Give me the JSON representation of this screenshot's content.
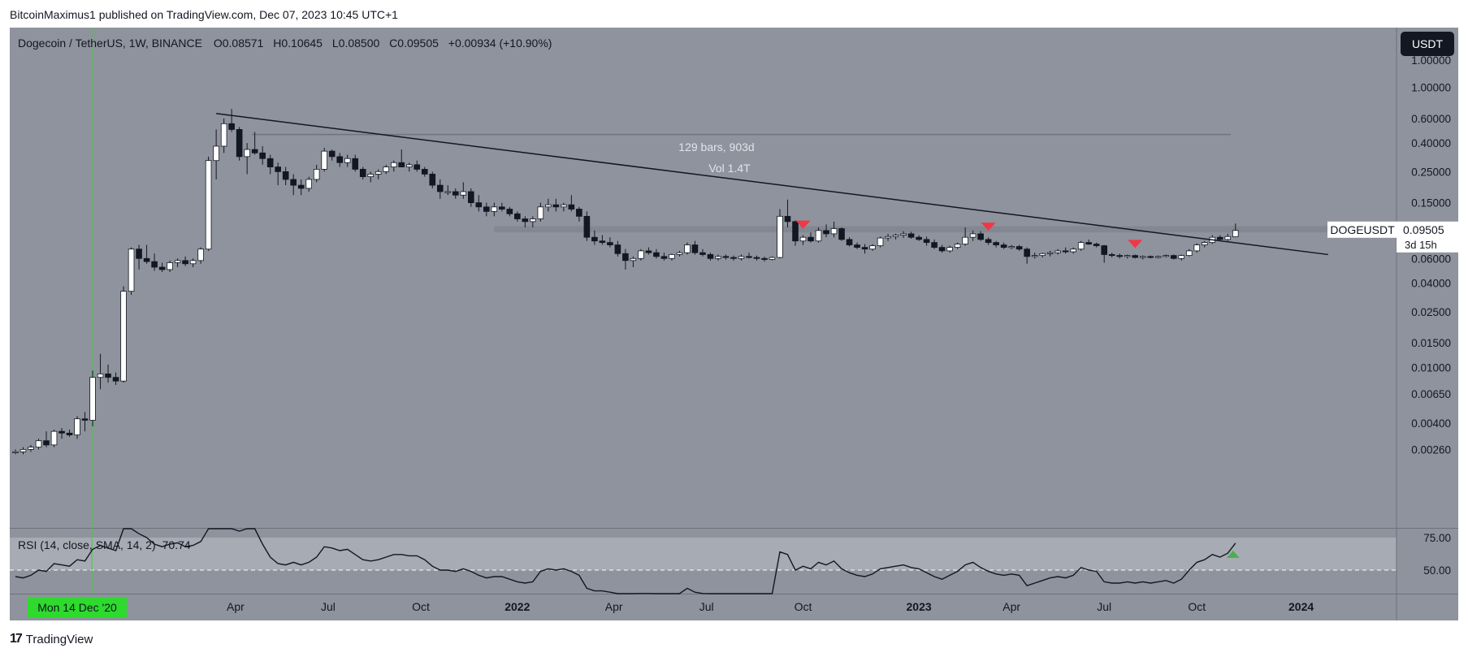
{
  "header": {
    "publisher": "BitcoinMaximus1 published on TradingView.com, Dec 07, 2023 10:45 UTC+1"
  },
  "footer": {
    "brand": "TradingView"
  },
  "legend": {
    "symbol": "Dogecoin / TetherUS, 1W, BINANCE",
    "o_label": "O",
    "o": "0.08571",
    "h_label": "H",
    "h": "0.10645",
    "l_label": "L",
    "l": "0.08500",
    "c_label": "C",
    "c": "0.09505",
    "change": "+0.00934 (+10.90%)"
  },
  "currency_button": "USDT",
  "measure": {
    "bars": "129 bars, 903d",
    "vol": "Vol 1.4T"
  },
  "price_tag": {
    "ticker": "DOGEUSDT",
    "price": "0.09505",
    "countdown": "3d 15h"
  },
  "rsi_legend": {
    "label": "RSI (14, close, SMA, 14, 2)",
    "value": "70.74"
  },
  "crosshair_date": "Mon 14 Dec '20",
  "colors": {
    "panel_bg": "#8f939d",
    "rsi_band": "#a7abb3",
    "up_fill": "#ffffff",
    "down_fill": "#131722",
    "marker_red": "#f23645",
    "marker_green": "#4caf50",
    "crosshair": "#2dda2d"
  },
  "chart_data": {
    "type": "candlestick",
    "timeframe": "1W",
    "price_scale": "log",
    "y_ticks": [
      "1.00000",
      "0.60000",
      "0.40000",
      "0.25000",
      "0.15000",
      "0.09505",
      "0.06000",
      "0.04000",
      "0.02500",
      "0.01500",
      "0.01000",
      "0.00650",
      "0.00400",
      "0.00260"
    ],
    "x_ticks": [
      "Apr",
      "Jul",
      "Oct",
      "2022",
      "Apr",
      "Jul",
      "Oct",
      "2023",
      "Apr",
      "Jul",
      "Oct",
      "2024"
    ],
    "rsi_ticks": [
      "75.00",
      "50.00"
    ],
    "candles": [
      [
        0.0025,
        0.0026,
        0.0024,
        0.0025
      ],
      [
        0.0025,
        0.0027,
        0.0024,
        0.0026
      ],
      [
        0.0026,
        0.0028,
        0.0025,
        0.0027
      ],
      [
        0.0027,
        0.0031,
        0.0026,
        0.003
      ],
      [
        0.003,
        0.0035,
        0.0027,
        0.0028
      ],
      [
        0.0028,
        0.0036,
        0.0027,
        0.0035
      ],
      [
        0.0035,
        0.0037,
        0.0031,
        0.0034
      ],
      [
        0.0034,
        0.0036,
        0.0032,
        0.0033
      ],
      [
        0.0033,
        0.0045,
        0.0031,
        0.0043
      ],
      [
        0.0043,
        0.0048,
        0.0035,
        0.0042
      ],
      [
        0.0042,
        0.0095,
        0.0038,
        0.0085
      ],
      [
        0.0085,
        0.0125,
        0.007,
        0.009
      ],
      [
        0.009,
        0.0105,
        0.0078,
        0.0085
      ],
      [
        0.0085,
        0.0092,
        0.0075,
        0.008
      ],
      [
        0.008,
        0.038,
        0.0078,
        0.035
      ],
      [
        0.035,
        0.072,
        0.033,
        0.07
      ],
      [
        0.07,
        0.075,
        0.05,
        0.06
      ],
      [
        0.06,
        0.075,
        0.055,
        0.057
      ],
      [
        0.057,
        0.065,
        0.049,
        0.052
      ],
      [
        0.052,
        0.056,
        0.048,
        0.05
      ],
      [
        0.05,
        0.058,
        0.048,
        0.056
      ],
      [
        0.056,
        0.06,
        0.052,
        0.058
      ],
      [
        0.058,
        0.062,
        0.053,
        0.055
      ],
      [
        0.055,
        0.06,
        0.052,
        0.058
      ],
      [
        0.058,
        0.072,
        0.055,
        0.07
      ],
      [
        0.07,
        0.32,
        0.068,
        0.3
      ],
      [
        0.3,
        0.5,
        0.22,
        0.38
      ],
      [
        0.38,
        0.6,
        0.34,
        0.55
      ],
      [
        0.55,
        0.7,
        0.48,
        0.5
      ],
      [
        0.5,
        0.52,
        0.3,
        0.32
      ],
      [
        0.32,
        0.4,
        0.24,
        0.36
      ],
      [
        0.36,
        0.48,
        0.33,
        0.34
      ],
      [
        0.34,
        0.38,
        0.28,
        0.31
      ],
      [
        0.31,
        0.33,
        0.24,
        0.27
      ],
      [
        0.27,
        0.29,
        0.2,
        0.25
      ],
      [
        0.25,
        0.27,
        0.2,
        0.22
      ],
      [
        0.22,
        0.24,
        0.17,
        0.2
      ],
      [
        0.2,
        0.22,
        0.17,
        0.19
      ],
      [
        0.19,
        0.23,
        0.18,
        0.22
      ],
      [
        0.22,
        0.28,
        0.21,
        0.26
      ],
      [
        0.26,
        0.37,
        0.25,
        0.35
      ],
      [
        0.35,
        0.36,
        0.3,
        0.32
      ],
      [
        0.32,
        0.34,
        0.27,
        0.29
      ],
      [
        0.29,
        0.33,
        0.27,
        0.31
      ],
      [
        0.31,
        0.33,
        0.25,
        0.26
      ],
      [
        0.26,
        0.27,
        0.22,
        0.23
      ],
      [
        0.23,
        0.25,
        0.21,
        0.24
      ],
      [
        0.24,
        0.26,
        0.22,
        0.25
      ],
      [
        0.25,
        0.28,
        0.24,
        0.27
      ],
      [
        0.27,
        0.3,
        0.25,
        0.29
      ],
      [
        0.29,
        0.36,
        0.27,
        0.27
      ],
      [
        0.27,
        0.29,
        0.25,
        0.28
      ],
      [
        0.28,
        0.3,
        0.25,
        0.26
      ],
      [
        0.26,
        0.27,
        0.23,
        0.24
      ],
      [
        0.24,
        0.25,
        0.19,
        0.2
      ],
      [
        0.2,
        0.22,
        0.16,
        0.18
      ],
      [
        0.18,
        0.2,
        0.17,
        0.18
      ],
      [
        0.18,
        0.19,
        0.16,
        0.17
      ],
      [
        0.17,
        0.21,
        0.16,
        0.18
      ],
      [
        0.18,
        0.19,
        0.14,
        0.15
      ],
      [
        0.15,
        0.17,
        0.13,
        0.14
      ],
      [
        0.14,
        0.15,
        0.12,
        0.13
      ],
      [
        0.13,
        0.15,
        0.12,
        0.14
      ],
      [
        0.14,
        0.15,
        0.13,
        0.135
      ],
      [
        0.135,
        0.14,
        0.12,
        0.125
      ],
      [
        0.125,
        0.13,
        0.11,
        0.115
      ],
      [
        0.115,
        0.12,
        0.1,
        0.11
      ],
      [
        0.11,
        0.12,
        0.1,
        0.115
      ],
      [
        0.115,
        0.15,
        0.11,
        0.14
      ],
      [
        0.14,
        0.16,
        0.13,
        0.145
      ],
      [
        0.145,
        0.16,
        0.13,
        0.14
      ],
      [
        0.14,
        0.15,
        0.13,
        0.145
      ],
      [
        0.145,
        0.17,
        0.13,
        0.135
      ],
      [
        0.135,
        0.14,
        0.11,
        0.12
      ],
      [
        0.12,
        0.13,
        0.08,
        0.085
      ],
      [
        0.085,
        0.095,
        0.075,
        0.08
      ],
      [
        0.08,
        0.088,
        0.075,
        0.078
      ],
      [
        0.078,
        0.085,
        0.072,
        0.075
      ],
      [
        0.075,
        0.08,
        0.062,
        0.065
      ],
      [
        0.065,
        0.07,
        0.05,
        0.058
      ],
      [
        0.058,
        0.062,
        0.052,
        0.06
      ],
      [
        0.06,
        0.07,
        0.058,
        0.068
      ],
      [
        0.068,
        0.072,
        0.064,
        0.066
      ],
      [
        0.066,
        0.07,
        0.06,
        0.062
      ],
      [
        0.062,
        0.066,
        0.058,
        0.06
      ],
      [
        0.06,
        0.065,
        0.058,
        0.064
      ],
      [
        0.064,
        0.068,
        0.062,
        0.066
      ],
      [
        0.066,
        0.078,
        0.064,
        0.075
      ],
      [
        0.075,
        0.08,
        0.064,
        0.066
      ],
      [
        0.066,
        0.07,
        0.062,
        0.064
      ],
      [
        0.064,
        0.066,
        0.058,
        0.06
      ],
      [
        0.06,
        0.064,
        0.058,
        0.062
      ],
      [
        0.062,
        0.064,
        0.059,
        0.061
      ],
      [
        0.061,
        0.063,
        0.058,
        0.06
      ],
      [
        0.06,
        0.064,
        0.058,
        0.062
      ],
      [
        0.062,
        0.066,
        0.06,
        0.061
      ],
      [
        0.061,
        0.063,
        0.058,
        0.06
      ],
      [
        0.06,
        0.062,
        0.057,
        0.059
      ],
      [
        0.059,
        0.062,
        0.058,
        0.061
      ],
      [
        0.061,
        0.135,
        0.06,
        0.12
      ],
      [
        0.12,
        0.158,
        0.1,
        0.11
      ],
      [
        0.11,
        0.112,
        0.074,
        0.08
      ],
      [
        0.08,
        0.088,
        0.075,
        0.085
      ],
      [
        0.085,
        0.092,
        0.078,
        0.08
      ],
      [
        0.08,
        0.1,
        0.078,
        0.095
      ],
      [
        0.095,
        0.105,
        0.085,
        0.09
      ],
      [
        0.09,
        0.11,
        0.085,
        0.098
      ],
      [
        0.098,
        0.1,
        0.08,
        0.082
      ],
      [
        0.082,
        0.085,
        0.073,
        0.075
      ],
      [
        0.075,
        0.078,
        0.07,
        0.072
      ],
      [
        0.072,
        0.076,
        0.065,
        0.07
      ],
      [
        0.07,
        0.076,
        0.068,
        0.074
      ],
      [
        0.074,
        0.086,
        0.072,
        0.084
      ],
      [
        0.084,
        0.09,
        0.08,
        0.086
      ],
      [
        0.086,
        0.09,
        0.082,
        0.088
      ],
      [
        0.088,
        0.094,
        0.084,
        0.09
      ],
      [
        0.09,
        0.093,
        0.083,
        0.085
      ],
      [
        0.085,
        0.088,
        0.08,
        0.082
      ],
      [
        0.082,
        0.086,
        0.074,
        0.078
      ],
      [
        0.078,
        0.082,
        0.07,
        0.072
      ],
      [
        0.072,
        0.075,
        0.066,
        0.068
      ],
      [
        0.068,
        0.074,
        0.066,
        0.072
      ],
      [
        0.072,
        0.078,
        0.07,
        0.076
      ],
      [
        0.076,
        0.1,
        0.074,
        0.085
      ],
      [
        0.085,
        0.095,
        0.08,
        0.09
      ],
      [
        0.09,
        0.094,
        0.08,
        0.082
      ],
      [
        0.082,
        0.085,
        0.075,
        0.078
      ],
      [
        0.078,
        0.08,
        0.072,
        0.075
      ],
      [
        0.075,
        0.078,
        0.07,
        0.072
      ],
      [
        0.072,
        0.075,
        0.07,
        0.073
      ],
      [
        0.073,
        0.075,
        0.068,
        0.07
      ],
      [
        0.07,
        0.072,
        0.055,
        0.062
      ],
      [
        0.062,
        0.066,
        0.06,
        0.063
      ],
      [
        0.063,
        0.066,
        0.061,
        0.065
      ],
      [
        0.065,
        0.068,
        0.062,
        0.066
      ],
      [
        0.066,
        0.07,
        0.064,
        0.068
      ],
      [
        0.068,
        0.072,
        0.065,
        0.067
      ],
      [
        0.067,
        0.072,
        0.065,
        0.07
      ],
      [
        0.07,
        0.08,
        0.068,
        0.078
      ],
      [
        0.078,
        0.082,
        0.075,
        0.076
      ],
      [
        0.076,
        0.078,
        0.072,
        0.074
      ],
      [
        0.074,
        0.075,
        0.056,
        0.064
      ],
      [
        0.064,
        0.066,
        0.061,
        0.063
      ],
      [
        0.063,
        0.065,
        0.06,
        0.062
      ],
      [
        0.062,
        0.064,
        0.06,
        0.063
      ],
      [
        0.063,
        0.064,
        0.06,
        0.061
      ],
      [
        0.061,
        0.063,
        0.059,
        0.062
      ],
      [
        0.062,
        0.063,
        0.06,
        0.061
      ],
      [
        0.061,
        0.063,
        0.06,
        0.062
      ],
      [
        0.062,
        0.064,
        0.061,
        0.063
      ],
      [
        0.063,
        0.064,
        0.059,
        0.06
      ],
      [
        0.06,
        0.064,
        0.058,
        0.063
      ],
      [
        0.063,
        0.07,
        0.062,
        0.068
      ],
      [
        0.068,
        0.077,
        0.066,
        0.075
      ],
      [
        0.075,
        0.08,
        0.072,
        0.078
      ],
      [
        0.078,
        0.088,
        0.076,
        0.085
      ],
      [
        0.085,
        0.088,
        0.08,
        0.082
      ],
      [
        0.082,
        0.09,
        0.08,
        0.086
      ],
      [
        0.0857,
        0.10645,
        0.085,
        0.09505
      ]
    ],
    "candle_format": [
      "open",
      "high",
      "low",
      "close"
    ],
    "rsi": [
      45,
      44,
      46,
      50,
      49,
      55,
      54,
      53,
      58,
      57,
      66,
      69,
      67,
      65,
      82,
      88,
      78,
      75,
      70,
      68,
      70,
      71,
      68,
      69,
      72,
      92,
      94,
      95,
      90,
      80,
      82,
      84,
      70,
      60,
      55,
      54,
      56,
      54,
      56,
      60,
      68,
      67,
      65,
      66,
      62,
      58,
      57,
      58,
      60,
      62,
      62,
      61,
      61,
      58,
      53,
      50,
      50,
      49,
      51,
      49,
      46,
      44,
      45,
      45,
      43,
      41,
      40,
      41,
      49,
      51,
      50,
      51,
      49,
      46,
      36,
      34,
      34,
      33,
      31,
      27,
      28,
      32,
      32,
      30,
      29,
      30,
      31,
      36,
      33,
      32,
      30,
      31,
      30,
      29,
      31,
      30,
      29,
      29,
      30,
      64,
      62,
      50,
      53,
      51,
      56,
      54,
      57,
      51,
      48,
      46,
      45,
      47,
      51,
      52,
      53,
      54,
      52,
      51,
      48,
      45,
      43,
      46,
      49,
      54,
      56,
      52,
      49,
      47,
      46,
      47,
      46,
      38,
      40,
      42,
      44,
      45,
      44,
      46,
      52,
      50,
      49,
      41,
      40,
      40,
      41,
      40,
      41,
      40,
      41,
      42,
      40,
      43,
      50,
      56,
      58,
      62,
      60,
      63,
      70.74
    ],
    "resistance_band": {
      "low": 0.092,
      "high": 0.102
    },
    "horizontal_line": 0.46,
    "trendline": {
      "start": [
        26,
        0.65
      ],
      "end": [
        170,
        0.064
      ]
    },
    "resistance_markers": [
      102,
      126,
      145
    ],
    "measure_range": {
      "from": 27,
      "to": 156
    },
    "crosshair_index": 10,
    "last_price": 0.09505
  }
}
